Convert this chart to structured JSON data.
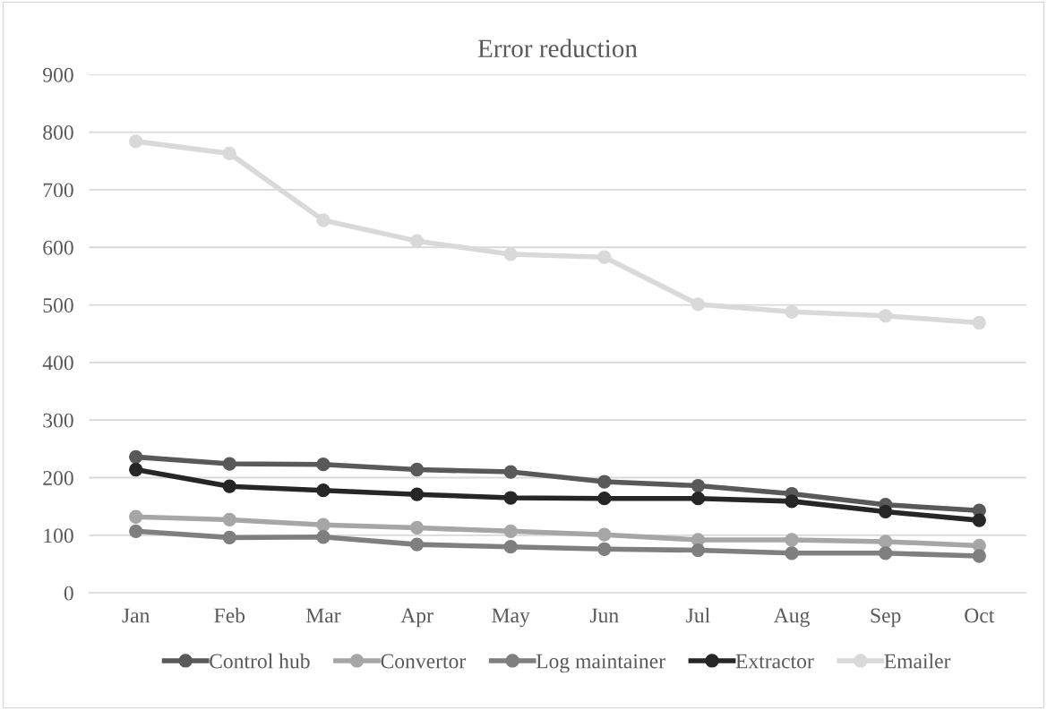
{
  "chart_data": {
    "type": "line",
    "title": "Error reduction",
    "categories": [
      "Jan",
      "Feb",
      "Mar",
      "Apr",
      "May",
      "Jun",
      "Jul",
      "Aug",
      "Sep",
      "Oct"
    ],
    "series": [
      {
        "name": "Control hub",
        "color": "#595959",
        "values": [
          236,
          224,
          223,
          214,
          210,
          193,
          186,
          172,
          153,
          143
        ]
      },
      {
        "name": "Convertor",
        "color": "#a6a6a6",
        "values": [
          132,
          127,
          118,
          113,
          107,
          101,
          92,
          92,
          89,
          82
        ]
      },
      {
        "name": "Log maintainer",
        "color": "#7f7f7f",
        "values": [
          107,
          96,
          97,
          84,
          80,
          76,
          74,
          69,
          69,
          64
        ]
      },
      {
        "name": "Extractor",
        "color": "#262626",
        "values": [
          214,
          185,
          178,
          171,
          165,
          164,
          164,
          159,
          141,
          126
        ]
      },
      {
        "name": "Emailer",
        "color": "#d9d9d9",
        "values": [
          784,
          763,
          647,
          611,
          588,
          583,
          501,
          488,
          481,
          469
        ]
      }
    ],
    "ylim": [
      0,
      900
    ],
    "yticks": [
      0,
      100,
      200,
      300,
      400,
      500,
      600,
      700,
      800,
      900
    ],
    "grid": "y",
    "legend": "bottom",
    "marker": "circle",
    "line_style": "solid"
  }
}
